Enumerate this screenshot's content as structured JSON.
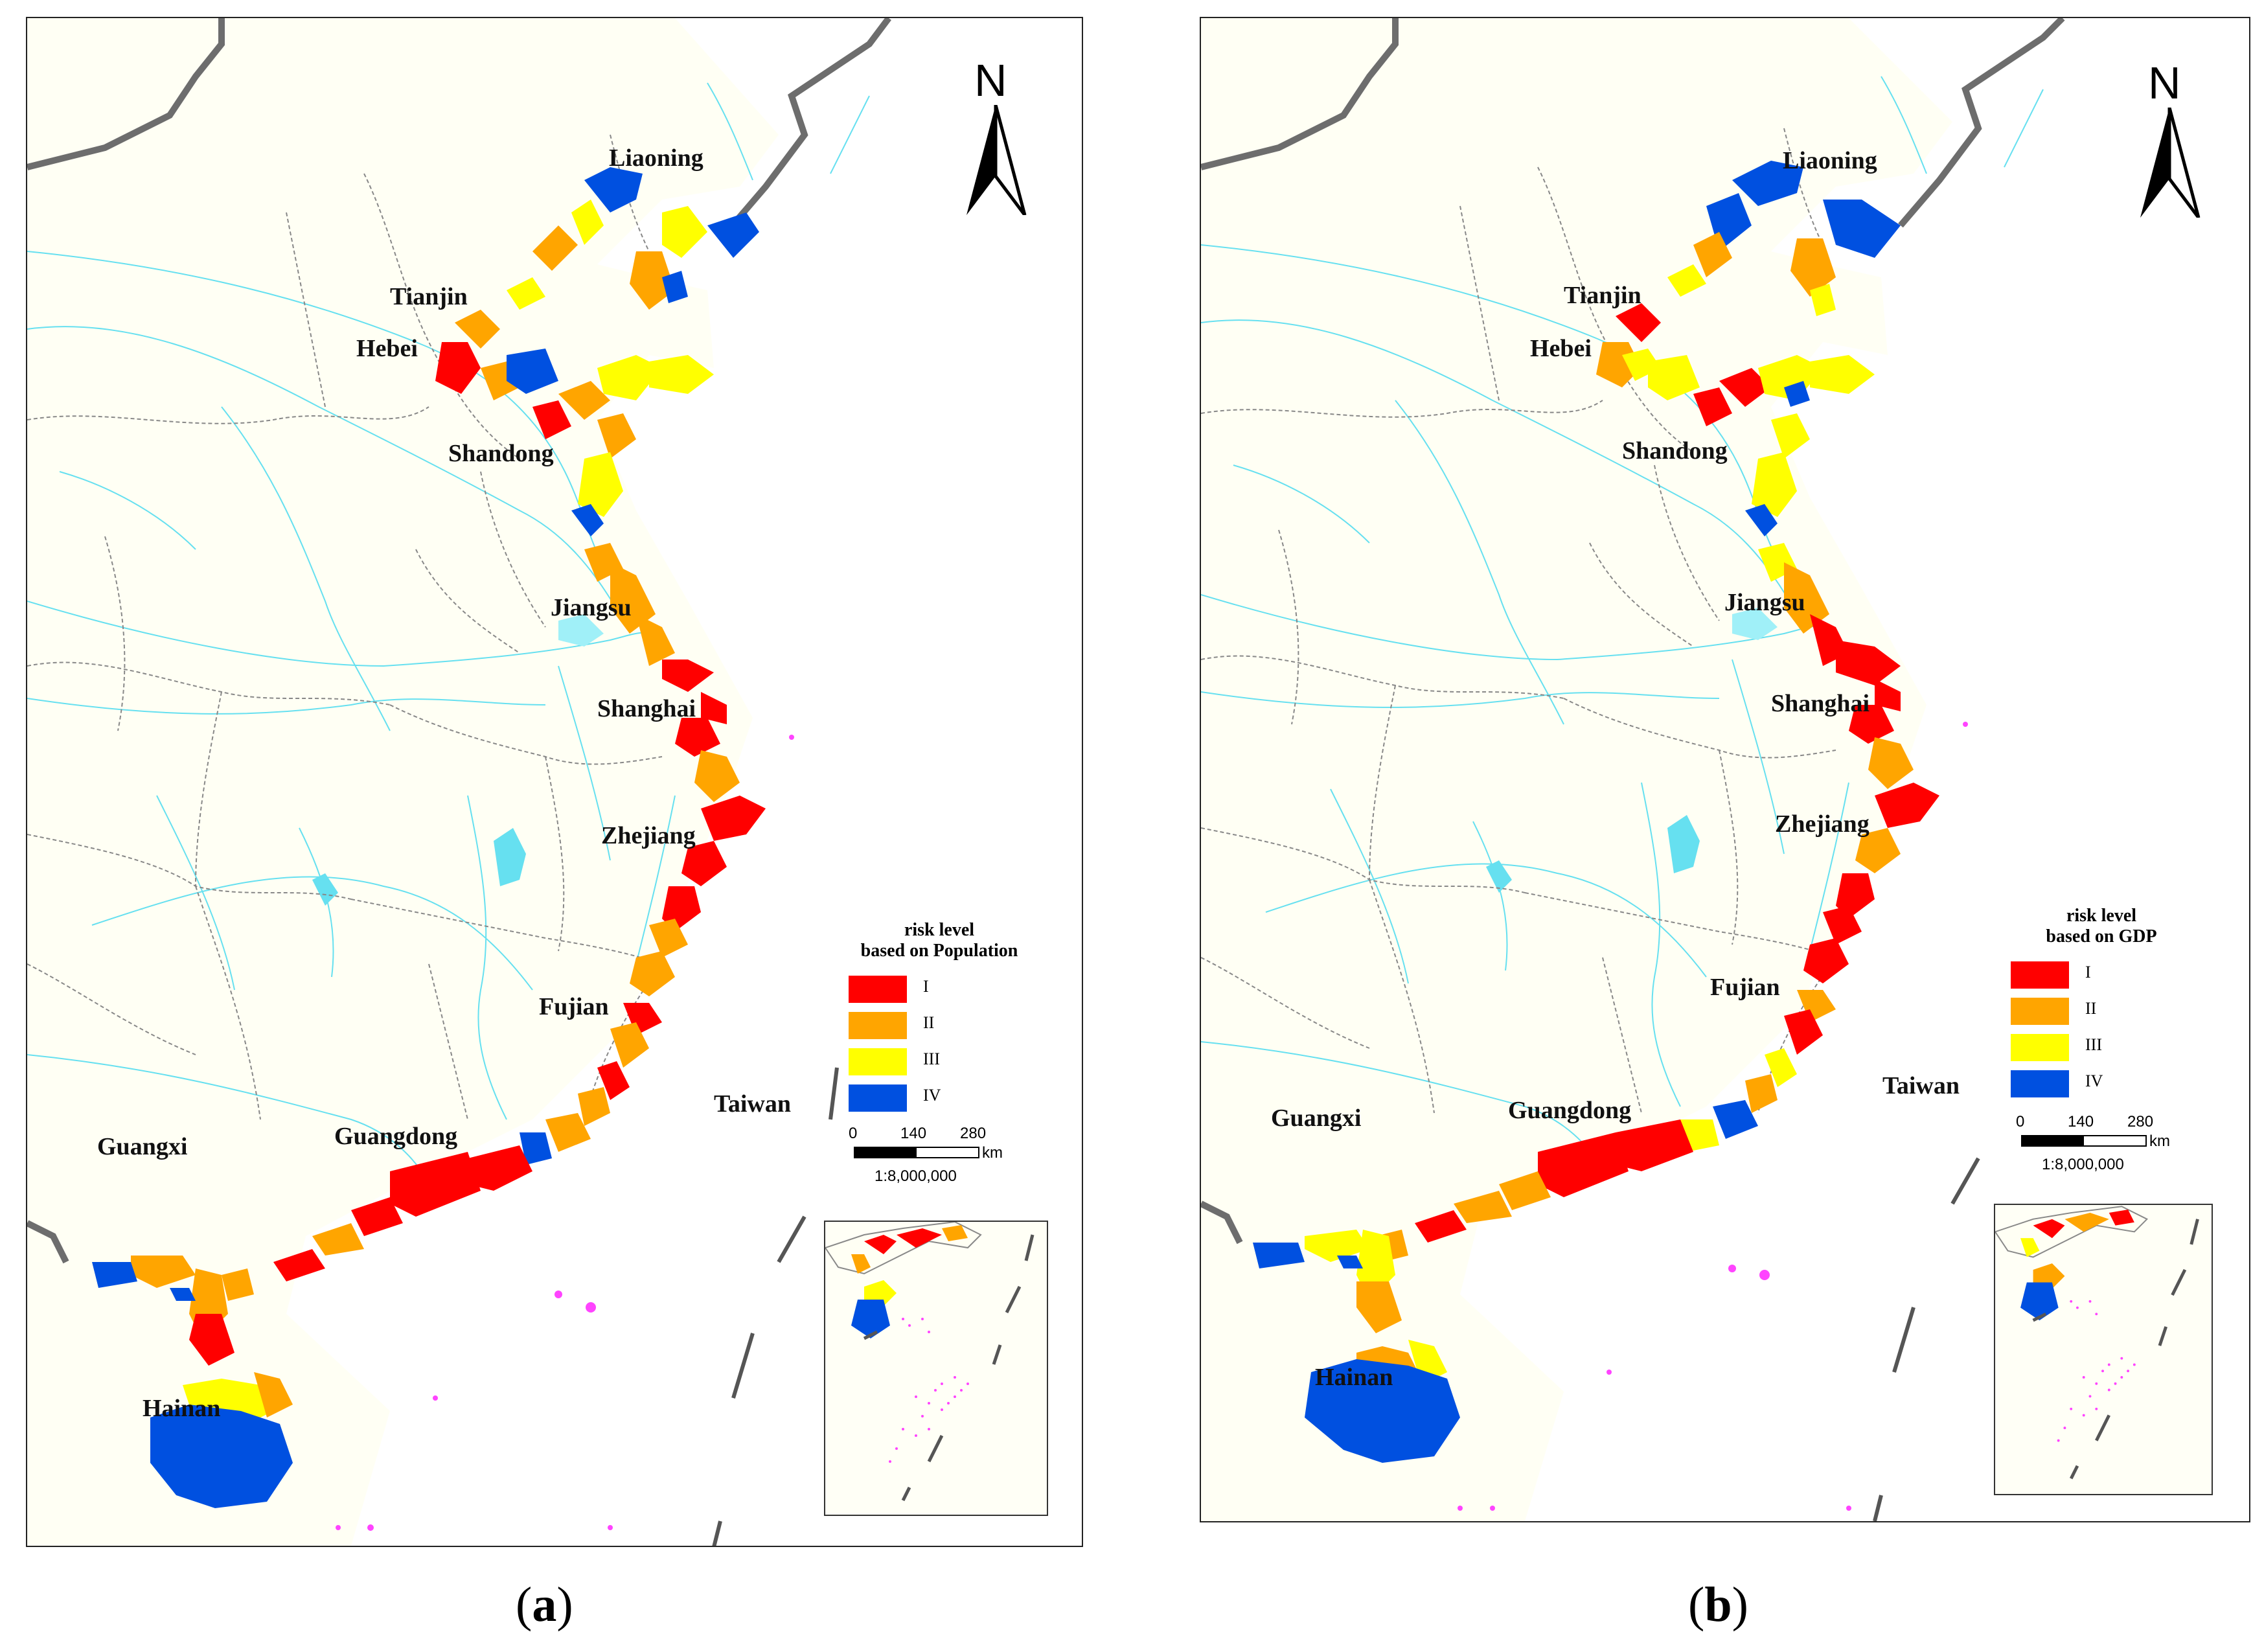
{
  "panels": [
    {
      "id": "a",
      "caption_letter": "a",
      "legend": {
        "title_line1": "risk level",
        "title_line2": "based on Population",
        "items": [
          {
            "label": "I",
            "color": "#ff0000"
          },
          {
            "label": "II",
            "color": "#ffa500"
          },
          {
            "label": "III",
            "color": "#ffff00"
          },
          {
            "label": "IV",
            "color": "#0050e0"
          }
        ]
      },
      "provinces": [
        "Liaoning",
        "Tianjin",
        "Hebei",
        "Shandong",
        "Jiangsu",
        "Shanghai",
        "Zhejiang",
        "Fujian",
        "Taiwan",
        "Guangxi",
        "Guangdong",
        "Hainan"
      ]
    },
    {
      "id": "b",
      "caption_letter": "b",
      "legend": {
        "title_line1": "risk level",
        "title_line2": "based on GDP",
        "items": [
          {
            "label": "I",
            "color": "#ff0000"
          },
          {
            "label": "II",
            "color": "#ffa500"
          },
          {
            "label": "III",
            "color": "#ffff00"
          },
          {
            "label": "IV",
            "color": "#0050e0"
          }
        ]
      },
      "provinces": [
        "Liaoning",
        "Tianjin",
        "Hebei",
        "Shandong",
        "Jiangsu",
        "Shanghai",
        "Zhejiang",
        "Fujian",
        "Taiwan",
        "Guangxi",
        "Guangdong",
        "Hainan"
      ]
    }
  ],
  "north_arrow": {
    "letter": "N"
  },
  "scale": {
    "ticks": [
      "0",
      "140",
      "280"
    ],
    "unit": "km",
    "ratio": "1:8,000,000"
  },
  "colors": {
    "land": "#fffff4",
    "rivers": "#66e0f0",
    "border": "#888888",
    "islands": "#ff44ff"
  }
}
